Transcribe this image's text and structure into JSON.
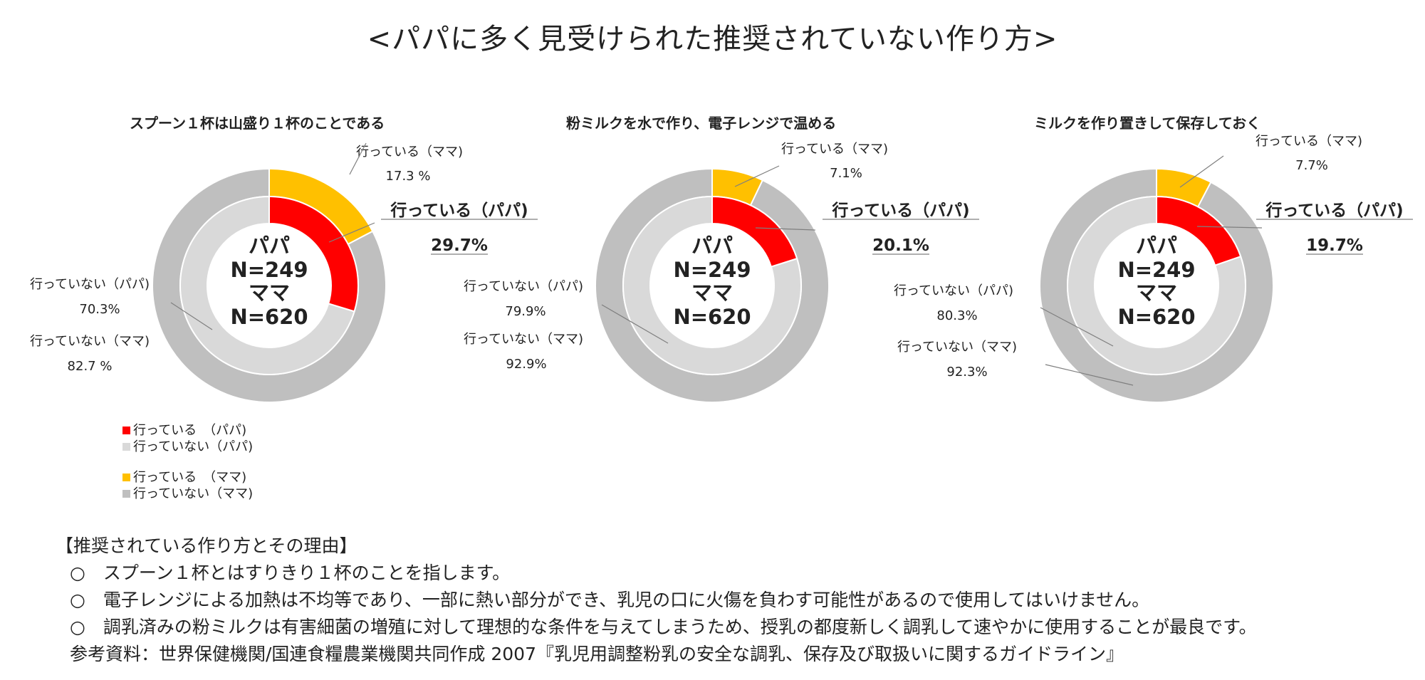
{
  "page_title": "<パパに多く見受けられた推奨されていない作り方>",
  "colors": {
    "papa_doing": "#ff0000",
    "papa_not": "#d9d9d9",
    "mama_doing": "#ffc000",
    "mama_not": "#bfbfbf"
  },
  "chart_data": [
    {
      "type": "pie",
      "title": "スプーン１杯は山盛り１杯のことである",
      "center_text": [
        "パパ",
        "N=249",
        "ママ",
        "N=620"
      ],
      "series": [
        {
          "name": "パパ",
          "ring": "inner",
          "labels": [
            "行っている（パパ)",
            "行っていない（パパ)"
          ],
          "values": [
            29.7,
            70.3
          ],
          "value_labels": [
            "29.7%",
            "70.3%"
          ]
        },
        {
          "name": "ママ",
          "ring": "outer",
          "labels": [
            "行っている（ママ)",
            "行っていない（ママ)"
          ],
          "values": [
            17.3,
            82.7
          ],
          "value_labels": [
            "17.3 %",
            "82.7 %"
          ]
        }
      ]
    },
    {
      "type": "pie",
      "title": "粉ミルクを水で作り、電子レンジで温める",
      "center_text": [
        "パパ",
        "N=249",
        "ママ",
        "N=620"
      ],
      "series": [
        {
          "name": "パパ",
          "ring": "inner",
          "labels": [
            "行っている（パパ)",
            "行っていない（パパ)"
          ],
          "values": [
            20.1,
            79.9
          ],
          "value_labels": [
            "20.1%",
            "79.9%"
          ]
        },
        {
          "name": "ママ",
          "ring": "outer",
          "labels": [
            "行っている（ママ)",
            "行っていない（ママ)"
          ],
          "values": [
            7.1,
            92.9
          ],
          "value_labels": [
            "7.1%",
            "92.9%"
          ]
        }
      ]
    },
    {
      "type": "pie",
      "title": "ミルクを作り置きして保存しておく",
      "center_text": [
        "パパ",
        "N=249",
        "ママ",
        "N=620"
      ],
      "series": [
        {
          "name": "パパ",
          "ring": "inner",
          "labels": [
            "行っている（パパ)",
            "行っていない（パパ)"
          ],
          "values": [
            19.7,
            80.3
          ],
          "value_labels": [
            "19.7%",
            "80.3%"
          ]
        },
        {
          "name": "ママ",
          "ring": "outer",
          "labels": [
            "行っている（ママ)",
            "行っていない（ママ)"
          ],
          "values": [
            7.7,
            92.3
          ],
          "value_labels": [
            "7.7%",
            "92.3%"
          ]
        }
      ]
    }
  ],
  "legend": {
    "items": [
      {
        "label": "行っている　（パパ)",
        "color_key": "papa_doing"
      },
      {
        "label": "行っていない（パパ)",
        "color_key": "papa_not"
      },
      {
        "label": "行っている　（ママ)",
        "color_key": "mama_doing"
      },
      {
        "label": "行っていない（ママ)",
        "color_key": "mama_not"
      }
    ]
  },
  "notes": {
    "heading": "【推奨されている作り方とその理由】",
    "items": [
      "○　スプーン１杯とはすりきり１杯のことを指します。",
      "○　電子レンジによる加熱は不均等であり、一部に熱い部分ができ、乳児の口に火傷を負わす可能性があるので使用してはいけません。",
      "○　調乳済みの粉ミルクは有害細菌の増殖に対して理想的な条件を与えてしまうため、授乳の都度新しく調乳して速やかに使用することが最良です。"
    ],
    "reference": "参考資料：世界保健機関/国連食糧農業機関共同作成 2007『乳児用調整粉乳の安全な調乳、保存及び取扱いに関するガイドライン』"
  }
}
